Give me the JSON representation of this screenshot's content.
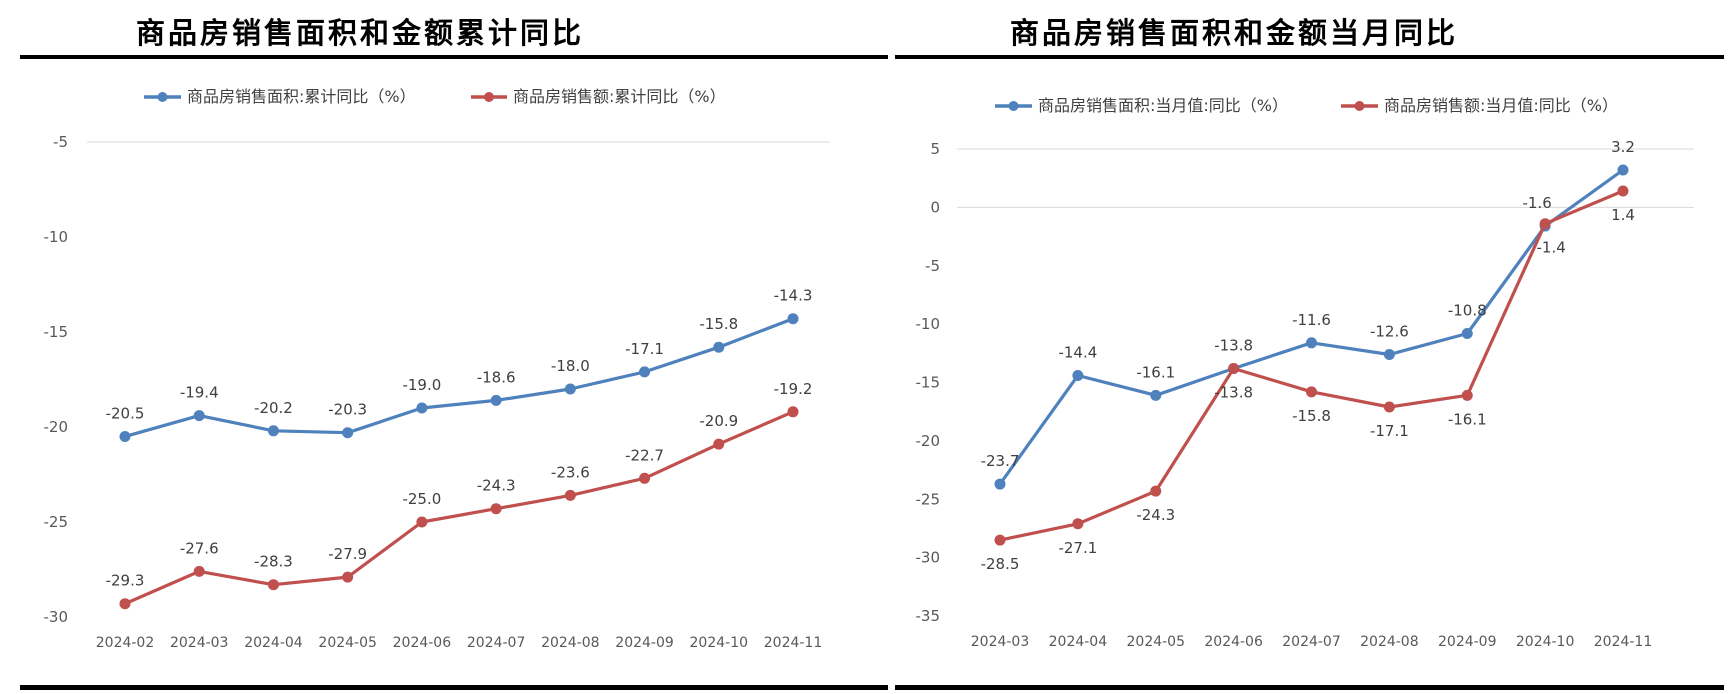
{
  "charts": [
    {
      "title": "商品房销售面积和金额累计同比",
      "chart_data": {
        "type": "line",
        "categories": [
          "2024-02",
          "2024-03",
          "2024-04",
          "2024-05",
          "2024-06",
          "2024-07",
          "2024-08",
          "2024-09",
          "2024-10",
          "2024-11"
        ],
        "ylim": [
          -30,
          -5
        ],
        "yticks": [
          -5,
          -10,
          -15,
          -20,
          -25,
          -30
        ],
        "grid": false,
        "legend_position": "top",
        "series": [
          {
            "name": "商品房销售面积:累计同比（%）",
            "color": "#4F81BD",
            "values": [
              -20.5,
              -19.4,
              -20.2,
              -20.3,
              -19.0,
              -18.6,
              -18.0,
              -17.1,
              -15.8,
              -14.3
            ],
            "labels": [
              "-20.5",
              "-19.4",
              "-20.2",
              "-20.3",
              "-19.0",
              "-18.6",
              "-18.0",
              "-17.1",
              "-15.8",
              "-14.3"
            ]
          },
          {
            "name": "商品房销售额:累计同比（%）",
            "color": "#C0504D",
            "values": [
              -29.3,
              -27.6,
              -28.3,
              -27.9,
              -25.0,
              -24.3,
              -23.6,
              -22.7,
              -20.9,
              -19.2
            ],
            "labels": [
              "-29.3",
              "-27.6",
              "-28.3",
              "-27.9",
              "-25.0",
              "-24.3",
              "-23.6",
              "-22.7",
              "-20.9",
              "-19.2"
            ]
          }
        ]
      }
    },
    {
      "title": "商品房销售面积和金额当月同比",
      "chart_data": {
        "type": "line",
        "categories": [
          "2024-03",
          "2024-04",
          "2024-05",
          "2024-06",
          "2024-07",
          "2024-08",
          "2024-09",
          "2024-10",
          "2024-11"
        ],
        "ylim": [
          -35,
          5
        ],
        "yticks": [
          5,
          0,
          -5,
          -10,
          -15,
          -20,
          -25,
          -30,
          -35
        ],
        "grid": false,
        "legend_position": "top",
        "series": [
          {
            "name": "商品房销售面积:当月值:同比（%）",
            "color": "#4F81BD",
            "values": [
              -23.7,
              -14.4,
              -16.1,
              -13.8,
              -11.6,
              -12.6,
              -10.8,
              -1.6,
              3.2
            ],
            "labels": [
              "-23.7",
              "-14.4",
              "-16.1",
              "-13.8",
              "-11.6",
              "-12.6",
              "-10.8",
              "-1.6",
              "3.2"
            ]
          },
          {
            "name": "商品房销售额:当月值:同比（%）",
            "color": "#C0504D",
            "values": [
              -28.5,
              -27.1,
              -24.3,
              -13.8,
              -15.8,
              -17.1,
              -16.1,
              -1.4,
              1.4
            ],
            "labels": [
              "-28.5",
              "-27.1",
              "-24.3",
              "-13.8",
              "-15.8",
              "-17.1",
              "-16.1",
              "-1.4",
              "1.4"
            ]
          }
        ]
      }
    }
  ]
}
